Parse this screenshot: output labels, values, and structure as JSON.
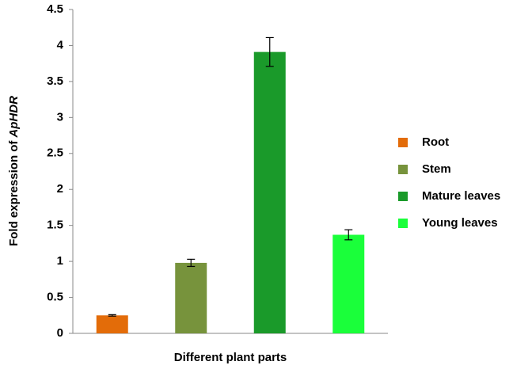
{
  "chart_data": {
    "type": "bar",
    "xlabel": "Different plant parts",
    "ylabel_parts": [
      "Fold expression of",
      "ApHDR"
    ],
    "categories": [
      null
    ],
    "series": [
      {
        "name": "Root",
        "color": "#e36c09",
        "values": [
          0.25
        ],
        "errors": [
          0.01
        ]
      },
      {
        "name": "Stem",
        "color": "#77933c",
        "values": [
          0.98
        ],
        "errors": [
          0.05
        ]
      },
      {
        "name": "Mature leaves",
        "color": "#1a9a2a",
        "values": [
          3.91
        ],
        "errors": [
          0.2
        ]
      },
      {
        "name": "Young leaves",
        "color": "#1aff3a",
        "values": [
          1.37
        ],
        "errors": [
          0.07
        ]
      }
    ],
    "ylim": [
      0,
      4.5
    ],
    "yticks": [
      0,
      0.5,
      1,
      1.5,
      2,
      2.5,
      3,
      3.5,
      4,
      4.5
    ],
    "grid": false,
    "legend": "right"
  }
}
